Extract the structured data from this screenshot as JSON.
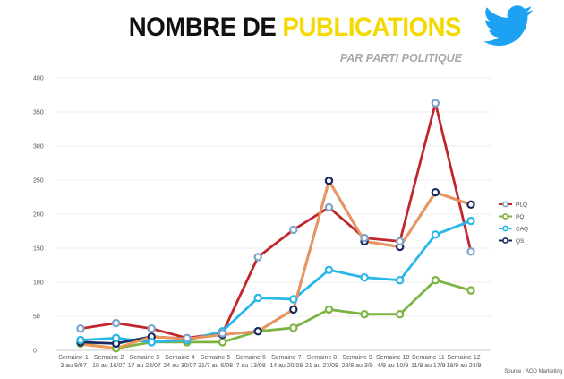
{
  "header": {
    "title_part1": "NOMBRE DE ",
    "title_part2": "PUBLICATIONS",
    "subtitle": "PAR PARTI POLITIQUE",
    "logo_icon": "twitter-bird-icon",
    "logo_color": "#1da1f2"
  },
  "source": "Source : AOD Marketing",
  "chart_data": {
    "type": "line",
    "title": "NOMBRE DE PUBLICATIONS",
    "subtitle": "PAR PARTI POLITIQUE",
    "xlabel": "",
    "ylabel": "",
    "ylim": [
      0,
      400
    ],
    "yticks": [
      0,
      50,
      100,
      150,
      200,
      250,
      300,
      350,
      400
    ],
    "grid": true,
    "legend_position": "right",
    "categories": [
      [
        "Semaine 1",
        "3 au 9/07"
      ],
      [
        "Semaine 2",
        "10 au 16/07"
      ],
      [
        "Semaine 3",
        "17 au 23/07"
      ],
      [
        "Semaine 4",
        "24 au 30/07"
      ],
      [
        "Semaine 5",
        "31/7 au 6/08"
      ],
      [
        "Semaine 6",
        "7 au 13/08"
      ],
      [
        "Semaine 7",
        "14 au 20/08"
      ],
      [
        "Semaine 8",
        "21 au 27/08"
      ],
      [
        "Semaine 9",
        "28/8 au 3/9"
      ],
      [
        "Semaine 10",
        "4/9 au 10/9"
      ],
      [
        "Semaine 11",
        "11/9 au 17/9"
      ],
      [
        "Semaine 12",
        "18/9 au 24/9"
      ]
    ],
    "series": [
      {
        "name": "PLQ",
        "line_color": "#c0272d",
        "marker_color": "#7fa2c9",
        "values": [
          32,
          40,
          32,
          18,
          25,
          137,
          177,
          210,
          165,
          160,
          363,
          145
        ]
      },
      {
        "name": "PQ",
        "line_color": "#7cb342",
        "marker_color": "#7cb342",
        "values": [
          10,
          3,
          12,
          12,
          12,
          28,
          33,
          60,
          53,
          53,
          103,
          88
        ]
      },
      {
        "name": "CAQ",
        "line_color": "#29b6e8",
        "marker_color": "#29b6e8",
        "values": [
          15,
          18,
          12,
          15,
          28,
          77,
          75,
          118,
          107,
          103,
          170,
          190
        ]
      },
      {
        "name": "QS",
        "line_color": "#1a2a5e",
        "marker_color": "#1a2a5e",
        "values": [
          12,
          10,
          20,
          17,
          23,
          28,
          60,
          249,
          160,
          152,
          232,
          214
        ]
      }
    ],
    "extra_lines": [
      {
        "color": "#f0955a",
        "values": [
          9,
          3,
          20,
          17,
          23,
          28,
          60,
          249,
          160,
          152,
          232,
          214
        ]
      }
    ]
  }
}
